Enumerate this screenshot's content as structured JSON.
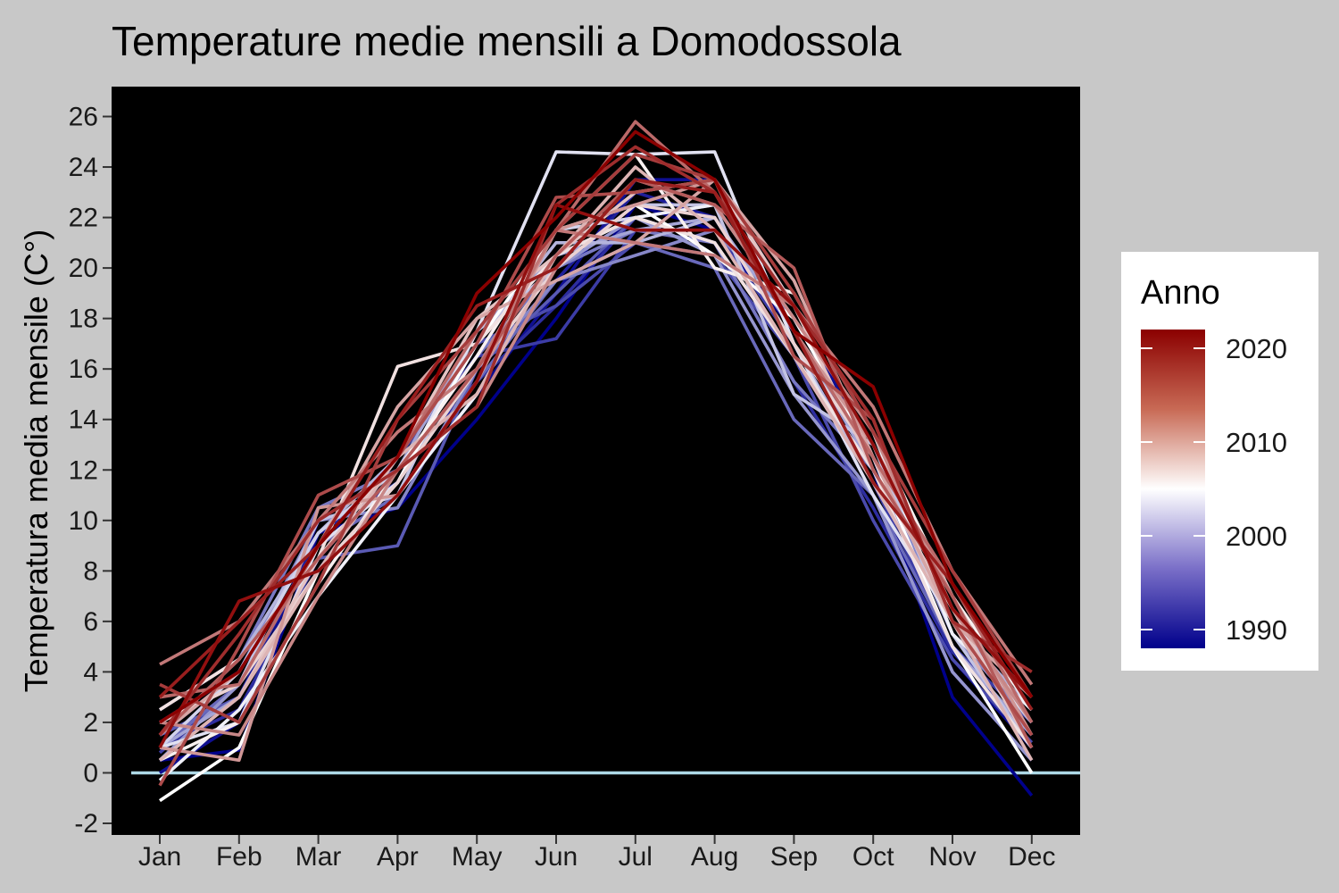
{
  "chart_data": {
    "type": "line",
    "title": "Temperature medie mensili a Domodossola",
    "xlabel": "",
    "ylabel": "Temperatura media mensile (C°)",
    "categories": [
      "Jan",
      "Feb",
      "Mar",
      "Apr",
      "May",
      "Jun",
      "Jul",
      "Aug",
      "Sep",
      "Oct",
      "Nov",
      "Dec"
    ],
    "ylim": [
      -2.4,
      27.2
    ],
    "yticks": [
      -2,
      0,
      2,
      4,
      6,
      8,
      10,
      12,
      14,
      16,
      18,
      20,
      22,
      24,
      26
    ],
    "ytick_labels": [
      "-2",
      "0",
      "2",
      "4",
      "6",
      "8",
      "10",
      "12",
      "14",
      "16",
      "18",
      "20",
      "22",
      "24",
      "26"
    ],
    "reference_line": {
      "y": 0,
      "color": "#add8e6"
    },
    "background": {
      "panel": "#000000",
      "outer": "#c8c8c8"
    },
    "grid": false,
    "color_scale": {
      "title": "Anno",
      "low": "#00008b",
      "mid": "#ffffff",
      "high": "#8b0000",
      "range": [
        1988,
        2022
      ],
      "midpoint": 2005,
      "breaks": [
        1990,
        2000,
        2010,
        2020
      ],
      "break_labels": [
        "1990",
        "2000",
        "2010",
        "2020"
      ],
      "legend_position": "right"
    },
    "series": [
      {
        "year": 1988,
        "values": [
          0.5,
          0.9,
          9.5,
          10.5,
          14.0,
          18.0,
          22.5,
          21.5,
          17.5,
          12.0,
          3.0,
          -0.9
        ]
      },
      {
        "year": 1989,
        "values": [
          0.0,
          2.0,
          10.0,
          11.0,
          15.0,
          19.0,
          23.5,
          23.5,
          18.5,
          12.5,
          4.5,
          1.0
        ]
      },
      {
        "year": 1990,
        "values": [
          1.5,
          3.0,
          9.5,
          11.5,
          16.0,
          19.5,
          23.0,
          22.0,
          17.0,
          11.0,
          4.0,
          0.5
        ]
      },
      {
        "year": 1991,
        "values": [
          1.0,
          2.5,
          8.5,
          12.0,
          15.5,
          18.5,
          22.0,
          21.0,
          15.5,
          10.5,
          4.8,
          1.5
        ]
      },
      {
        "year": 1992,
        "values": [
          0.8,
          3.5,
          8.0,
          12.5,
          16.5,
          17.2,
          21.5,
          21.5,
          17.0,
          11.5,
          5.0,
          2.0
        ]
      },
      {
        "year": 1993,
        "values": [
          2.0,
          4.0,
          9.0,
          11.5,
          17.0,
          18.5,
          21.0,
          20.5,
          16.5,
          10.0,
          4.5,
          1.2
        ]
      },
      {
        "year": 1994,
        "values": [
          1.5,
          3.0,
          8.5,
          9.0,
          16.0,
          19.0,
          22.0,
          22.5,
          18.0,
          12.5,
          5.5,
          2.5
        ]
      },
      {
        "year": 1995,
        "values": [
          1.0,
          3.5,
          9.0,
          11.0,
          15.5,
          19.5,
          21.0,
          20.0,
          14.0,
          11.0,
          5.0,
          1.0
        ]
      },
      {
        "year": 1996,
        "values": [
          2.5,
          4.5,
          10.5,
          12.0,
          16.5,
          20.0,
          21.5,
          21.0,
          15.5,
          12.0,
          6.0,
          2.0
        ]
      },
      {
        "year": 1997,
        "values": [
          1.5,
          4.0,
          10.0,
          10.5,
          16.0,
          19.5,
          20.5,
          21.5,
          18.0,
          12.5,
          5.5,
          2.0
        ]
      },
      {
        "year": 1998,
        "values": [
          0.5,
          3.5,
          9.0,
          11.5,
          16.0,
          20.0,
          22.0,
          20.5,
          15.0,
          11.0,
          4.0,
          0.5
        ]
      },
      {
        "year": 1999,
        "values": [
          1.0,
          3.0,
          8.5,
          12.0,
          17.5,
          20.5,
          21.5,
          22.0,
          17.5,
          12.0,
          5.0,
          1.5
        ]
      },
      {
        "year": 2000,
        "values": [
          1.5,
          4.5,
          9.5,
          12.5,
          17.0,
          21.0,
          21.0,
          22.0,
          17.0,
          11.5,
          6.0,
          2.5
        ]
      },
      {
        "year": 2001,
        "values": [
          2.0,
          3.5,
          10.0,
          11.0,
          17.5,
          20.0,
          22.5,
          22.5,
          15.0,
          13.0,
          5.5,
          1.0
        ]
      },
      {
        "year": 2002,
        "values": [
          1.0,
          4.0,
          9.5,
          12.0,
          16.0,
          21.5,
          22.0,
          21.0,
          16.5,
          12.0,
          6.5,
          3.0
        ]
      },
      {
        "year": 2003,
        "values": [
          1.0,
          2.0,
          9.0,
          11.5,
          17.5,
          24.6,
          24.5,
          24.6,
          17.0,
          11.0,
          6.0,
          2.0
        ]
      },
      {
        "year": 2004,
        "values": [
          -0.3,
          2.5,
          7.0,
          11.0,
          15.0,
          20.5,
          22.0,
          22.5,
          18.0,
          13.5,
          5.5,
          2.5
        ]
      },
      {
        "year": 2005,
        "values": [
          -1.1,
          1.0,
          8.0,
          11.5,
          17.0,
          21.5,
          22.5,
          20.5,
          18.0,
          12.5,
          5.0,
          0.0
        ]
      },
      {
        "year": 2006,
        "values": [
          0.5,
          2.0,
          7.5,
          12.0,
          16.5,
          21.5,
          24.5,
          20.0,
          19.0,
          13.5,
          7.0,
          2.5
        ]
      },
      {
        "year": 2007,
        "values": [
          2.5,
          4.5,
          8.5,
          16.1,
          17.0,
          20.5,
          22.0,
          21.0,
          16.5,
          12.0,
          5.0,
          1.0
        ]
      },
      {
        "year": 2008,
        "values": [
          2.0,
          3.5,
          8.0,
          11.5,
          16.0,
          20.0,
          22.5,
          22.0,
          17.0,
          12.5,
          6.0,
          1.5
        ]
      },
      {
        "year": 2009,
        "values": [
          0.5,
          3.0,
          8.5,
          12.5,
          18.0,
          20.5,
          23.0,
          23.5,
          18.5,
          12.0,
          6.5,
          1.0
        ]
      },
      {
        "year": 2010,
        "values": [
          0.5,
          3.0,
          8.0,
          12.5,
          15.0,
          20.5,
          24.0,
          21.5,
          16.5,
          11.5,
          6.0,
          0.5
        ]
      },
      {
        "year": 2011,
        "values": [
          1.5,
          4.0,
          9.0,
          14.5,
          18.0,
          19.5,
          21.0,
          23.5,
          19.5,
          12.5,
          6.0,
          3.0
        ]
      },
      {
        "year": 2012,
        "values": [
          1.0,
          0.5,
          10.5,
          11.0,
          15.5,
          21.5,
          22.5,
          23.5,
          17.5,
          13.0,
          7.0,
          1.5
        ]
      },
      {
        "year": 2013,
        "values": [
          2.0,
          1.5,
          7.0,
          12.0,
          14.5,
          20.0,
          23.5,
          22.5,
          18.0,
          13.5,
          6.5,
          2.0
        ]
      },
      {
        "year": 2014,
        "values": [
          4.3,
          6.0,
          10.0,
          13.5,
          16.0,
          21.5,
          21.0,
          20.5,
          18.5,
          14.5,
          8.0,
          3.5
        ]
      },
      {
        "year": 2015,
        "values": [
          3.0,
          3.5,
          9.0,
          12.5,
          17.5,
          21.5,
          25.8,
          23.0,
          17.5,
          12.5,
          7.5,
          2.0
        ]
      },
      {
        "year": 2016,
        "values": [
          1.5,
          4.5,
          8.5,
          12.0,
          16.0,
          20.5,
          23.5,
          22.5,
          20.0,
          12.0,
          7.0,
          1.0
        ]
      },
      {
        "year": 2017,
        "values": [
          -0.5,
          5.0,
          11.0,
          12.5,
          17.0,
          22.8,
          23.0,
          23.5,
          16.5,
          14.0,
          6.0,
          1.5
        ]
      },
      {
        "year": 2018,
        "values": [
          3.5,
          2.0,
          7.5,
          14.0,
          17.5,
          21.5,
          24.5,
          23.5,
          19.0,
          13.5,
          8.0,
          3.0
        ]
      },
      {
        "year": 2019,
        "values": [
          1.5,
          5.5,
          10.0,
          12.0,
          14.5,
          22.5,
          24.8,
          23.0,
          18.5,
          14.0,
          6.0,
          4.0
        ]
      },
      {
        "year": 2020,
        "values": [
          3.0,
          6.0,
          9.0,
          14.0,
          18.5,
          20.0,
          23.5,
          23.0,
          17.5,
          11.5,
          7.5,
          2.5
        ]
      },
      {
        "year": 2021,
        "values": [
          1.0,
          6.8,
          8.0,
          11.0,
          15.5,
          22.5,
          21.5,
          21.5,
          18.5,
          13.0,
          6.5,
          3.0
        ]
      },
      {
        "year": 2022,
        "values": [
          2.0,
          4.0,
          9.0,
          12.5,
          19.0,
          22.0,
          25.4,
          23.5,
          17.5,
          15.3,
          7.5,
          3.0
        ]
      }
    ]
  }
}
